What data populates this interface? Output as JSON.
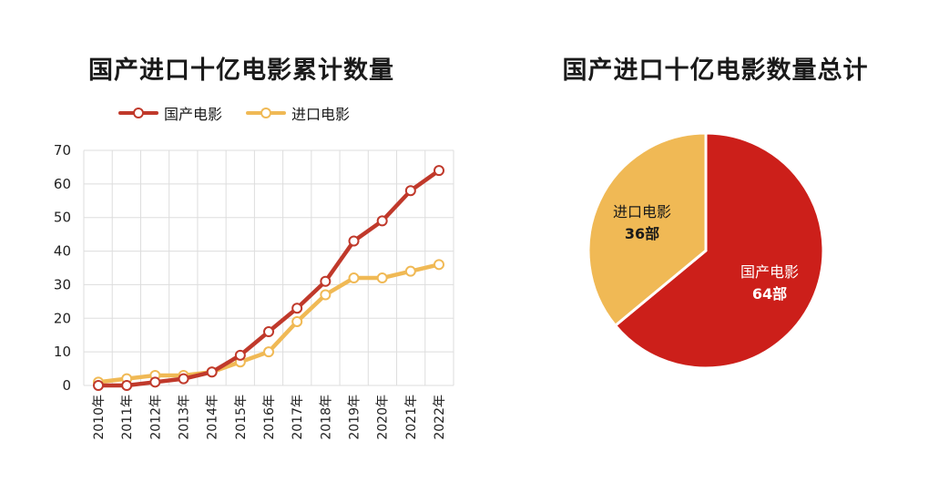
{
  "chart_data": [
    {
      "type": "line",
      "title": "国产进口十亿电影累计数量",
      "categories": [
        "2010年",
        "2011年",
        "2012年",
        "2013年",
        "2014年",
        "2015年",
        "2016年",
        "2017年",
        "2018年",
        "2019年",
        "2020年",
        "2021年",
        "2022年"
      ],
      "series": [
        {
          "name": "国产电影",
          "color": "#c0392b",
          "values": [
            0,
            0,
            1,
            2,
            4,
            9,
            16,
            23,
            31,
            43,
            49,
            58,
            64
          ]
        },
        {
          "name": "进口电影",
          "color": "#f0b955",
          "values": [
            1,
            2,
            3,
            3,
            4,
            7,
            10,
            19,
            27,
            32,
            32,
            34,
            36
          ]
        }
      ],
      "ylim": [
        0,
        70
      ],
      "yticks": [
        0,
        10,
        20,
        30,
        40,
        50,
        60,
        70
      ],
      "grid": true,
      "legend": "top"
    },
    {
      "type": "pie",
      "title": "国产进口十亿电影数量总计",
      "slices": [
        {
          "name": "国产电影",
          "value": 64,
          "label": "64部",
          "color": "#cc1f1a"
        },
        {
          "name": "进口电影",
          "value": 36,
          "label": "36部",
          "color": "#f0b955"
        }
      ]
    }
  ]
}
